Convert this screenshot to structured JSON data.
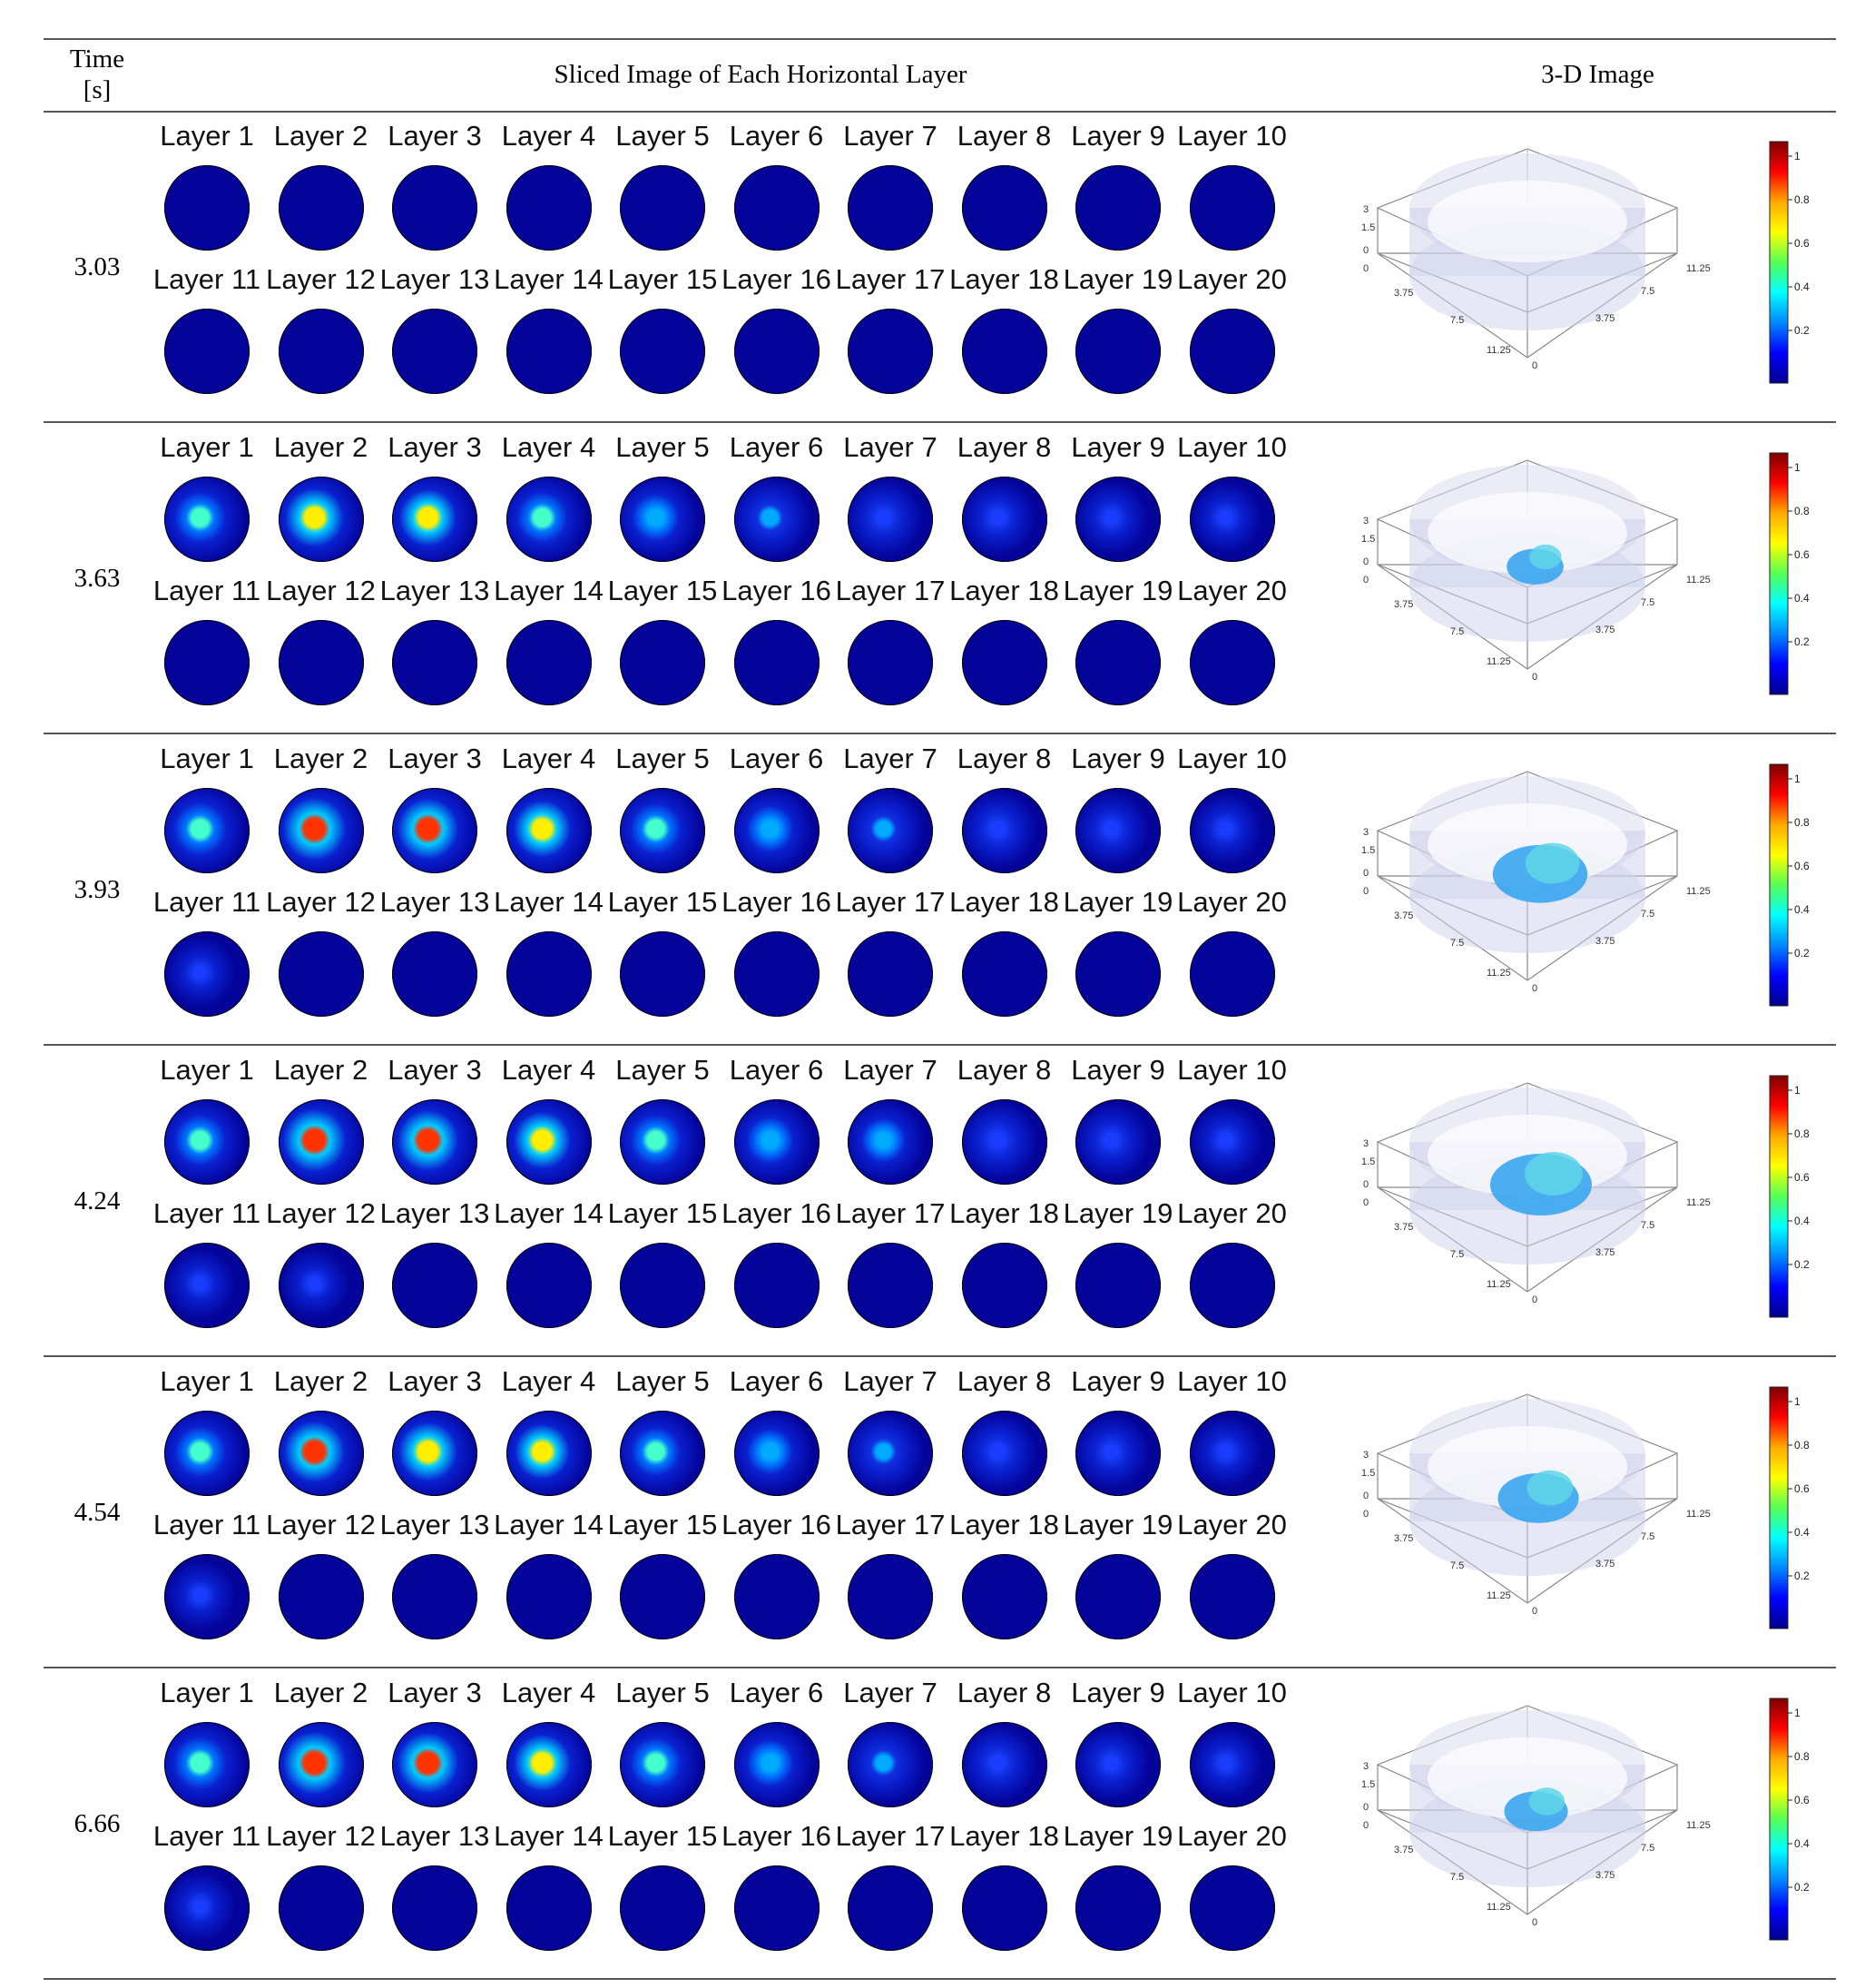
{
  "header": {
    "time_label": "Time",
    "time_unit": "[s]",
    "slice_label": "Sliced Image of Each Horizontal Layer",
    "image3d_label": "3-D Image"
  },
  "layer_labels": [
    "Layer 1",
    "Layer 2",
    "Layer 3",
    "Layer 4",
    "Layer 5",
    "Layer 6",
    "Layer 7",
    "Layer 8",
    "Layer 9",
    "Layer 10",
    "Layer 11",
    "Layer 12",
    "Layer 13",
    "Layer 14",
    "Layer 15",
    "Layer 16",
    "Layer 17",
    "Layer 18",
    "Layer 19",
    "Layer 20"
  ],
  "axis_ticks": {
    "z": [
      "3",
      "1.5",
      "0"
    ],
    "x": [
      "0",
      "3.75",
      "7.5",
      "11.25"
    ],
    "y": [
      "11.25",
      "7.5",
      "3.75",
      "0"
    ]
  },
  "colorbar_ticks": [
    "1",
    "0.8",
    "0.6",
    "0.4",
    "0.2"
  ],
  "colorbar_colors": [
    "#7f0000",
    "#ff0000",
    "#ffaa00",
    "#ffff00",
    "#55ff55",
    "#00ffff",
    "#0088ff",
    "#0000ff",
    "#00008f"
  ],
  "rows": [
    {
      "time": "3.03",
      "intensity": [
        0,
        0,
        0,
        0,
        0,
        0,
        0,
        0,
        0,
        0,
        0,
        0,
        0,
        0,
        0,
        0,
        0,
        0,
        0,
        0
      ],
      "blob": 0
    },
    {
      "time": "3.63",
      "intensity": [
        0.55,
        0.75,
        0.7,
        0.55,
        0.45,
        0.35,
        0.25,
        0.18,
        0.12,
        0.08,
        0,
        0,
        0,
        0,
        0,
        0,
        0,
        0,
        0,
        0
      ],
      "blob": 0.35
    },
    {
      "time": "3.93",
      "intensity": [
        0.6,
        0.85,
        0.8,
        0.7,
        0.55,
        0.45,
        0.35,
        0.25,
        0.18,
        0.1,
        0.05,
        0,
        0,
        0,
        0,
        0,
        0,
        0,
        0,
        0
      ],
      "blob": 0.9
    },
    {
      "time": "4.24",
      "intensity": [
        0.55,
        0.85,
        0.8,
        0.7,
        0.55,
        0.45,
        0.38,
        0.28,
        0.2,
        0.12,
        0.05,
        0.02,
        0,
        0,
        0,
        0,
        0,
        0,
        0,
        0
      ],
      "blob": 1.0
    },
    {
      "time": "4.54",
      "intensity": [
        0.55,
        0.8,
        0.75,
        0.65,
        0.5,
        0.42,
        0.33,
        0.25,
        0.18,
        0.1,
        0.04,
        0,
        0,
        0,
        0,
        0,
        0,
        0,
        0,
        0
      ],
      "blob": 0.7
    },
    {
      "time": "6.66",
      "intensity": [
        0.6,
        0.85,
        0.8,
        0.7,
        0.55,
        0.45,
        0.35,
        0.25,
        0.18,
        0.1,
        0.05,
        0,
        0,
        0,
        0,
        0,
        0,
        0,
        0,
        0
      ],
      "blob": 0.45
    }
  ]
}
